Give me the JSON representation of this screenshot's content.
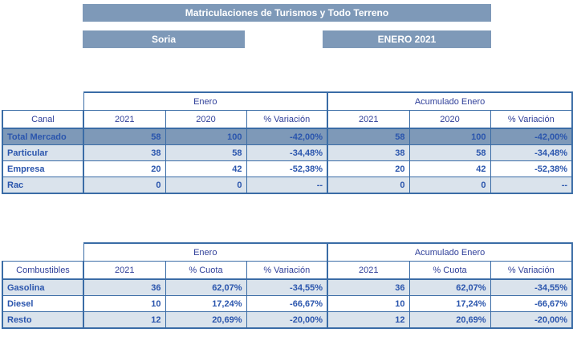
{
  "report": {
    "title": "Matriculaciones de Turismos y Todo Terreno",
    "region": "Soria",
    "period": "ENERO 2021"
  },
  "colors": {
    "banner_bg": "#7e99b8",
    "total_row_bg": "#7e99b8",
    "alt_row_bg": "#dae3ec",
    "table_border": "#3a6ca6",
    "header_text": "#2f3f99",
    "body_text": "#2a55ad",
    "total_row_text": "#ffffff"
  },
  "tables": {
    "canal": {
      "group_headers": [
        "Enero",
        "Acumulado Enero"
      ],
      "label_header": "Canal",
      "col_headers": [
        "2021",
        "2020",
        "% Variación",
        "2021",
        "2020",
        "% Variación"
      ],
      "rows": [
        {
          "label": "Total Mercado",
          "type": "total",
          "values": [
            "58",
            "100",
            "-42,00%",
            "58",
            "100",
            "-42,00%"
          ]
        },
        {
          "label": "Particular",
          "type": "alt",
          "values": [
            "38",
            "58",
            "-34,48%",
            "38",
            "58",
            "-34,48%"
          ]
        },
        {
          "label": "Empresa",
          "type": "plain",
          "values": [
            "20",
            "42",
            "-52,38%",
            "20",
            "42",
            "-52,38%"
          ]
        },
        {
          "label": "Rac",
          "type": "alt",
          "values": [
            "0",
            "0",
            "--",
            "0",
            "0",
            "--"
          ]
        }
      ]
    },
    "combustibles": {
      "group_headers": [
        "Enero",
        "Acumulado Enero"
      ],
      "label_header": "Combustibles",
      "col_headers": [
        "2021",
        "% Cuota",
        "% Variación",
        "2021",
        "% Cuota",
        "% Variación"
      ],
      "rows": [
        {
          "label": "Gasolina",
          "type": "alt",
          "values": [
            "36",
            "62,07%",
            "-34,55%",
            "36",
            "62,07%",
            "-34,55%"
          ]
        },
        {
          "label": "Diesel",
          "type": "plain",
          "values": [
            "10",
            "17,24%",
            "-66,67%",
            "10",
            "17,24%",
            "-66,67%"
          ]
        },
        {
          "label": "Resto",
          "type": "alt",
          "values": [
            "12",
            "20,69%",
            "-20,00%",
            "12",
            "20,69%",
            "-20,00%"
          ]
        }
      ]
    }
  }
}
